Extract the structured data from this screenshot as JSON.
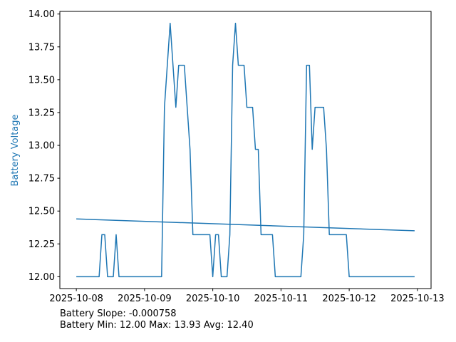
{
  "chart_data": {
    "type": "line",
    "title": "",
    "xlabel": "",
    "ylabel": "Battery Voltage",
    "ylabel_color": "#1f77b4",
    "line_color": "#1f77b4",
    "ylim": [
      11.91,
      14.02
    ],
    "xlim": [
      "2025-10-07T18:12",
      "2025-10-13T04:48"
    ],
    "yticks": [
      "12.00",
      "12.25",
      "12.50",
      "12.75",
      "13.00",
      "13.25",
      "13.50",
      "13.75",
      "14.00"
    ],
    "xticks": [
      "2025-10-08",
      "2025-10-09",
      "2025-10-10",
      "2025-10-11",
      "2025-10-12",
      "2025-10-13"
    ],
    "grid": false,
    "series": [
      {
        "points": [
          [
            "2025-10-08T00:00",
            12.0
          ],
          [
            "2025-10-08T08:00",
            12.0
          ],
          [
            "2025-10-08T09:00",
            12.32
          ],
          [
            "2025-10-08T10:00",
            12.32
          ],
          [
            "2025-10-08T11:00",
            12.0
          ],
          [
            "2025-10-08T13:00",
            12.0
          ],
          [
            "2025-10-08T14:00",
            12.32
          ],
          [
            "2025-10-08T15:00",
            12.0
          ],
          [
            "2025-10-09T06:00",
            12.0
          ],
          [
            "2025-10-09T07:00",
            13.29
          ],
          [
            "2025-10-09T09:00",
            13.93
          ],
          [
            "2025-10-09T11:00",
            13.29
          ],
          [
            "2025-10-09T12:00",
            13.61
          ],
          [
            "2025-10-09T14:00",
            13.61
          ],
          [
            "2025-10-09T16:00",
            12.97
          ],
          [
            "2025-10-09T17:00",
            12.32
          ],
          [
            "2025-10-09T23:00",
            12.32
          ],
          [
            "2025-10-10T00:00",
            12.0
          ],
          [
            "2025-10-10T01:00",
            12.32
          ],
          [
            "2025-10-10T02:00",
            12.32
          ],
          [
            "2025-10-10T03:00",
            12.0
          ],
          [
            "2025-10-10T05:00",
            12.0
          ],
          [
            "2025-10-10T06:00",
            12.32
          ],
          [
            "2025-10-10T07:00",
            13.61
          ],
          [
            "2025-10-10T08:00",
            13.93
          ],
          [
            "2025-10-10T09:00",
            13.61
          ],
          [
            "2025-10-10T11:00",
            13.61
          ],
          [
            "2025-10-10T12:00",
            13.29
          ],
          [
            "2025-10-10T14:00",
            13.29
          ],
          [
            "2025-10-10T15:00",
            12.97
          ],
          [
            "2025-10-10T16:00",
            12.97
          ],
          [
            "2025-10-10T17:00",
            12.32
          ],
          [
            "2025-10-10T21:00",
            12.32
          ],
          [
            "2025-10-10T22:00",
            12.0
          ],
          [
            "2025-10-11T07:00",
            12.0
          ],
          [
            "2025-10-11T08:00",
            12.32
          ],
          [
            "2025-10-11T09:00",
            13.61
          ],
          [
            "2025-10-11T10:00",
            13.61
          ],
          [
            "2025-10-11T11:00",
            12.97
          ],
          [
            "2025-10-11T12:00",
            13.29
          ],
          [
            "2025-10-11T15:00",
            13.29
          ],
          [
            "2025-10-11T16:00",
            12.97
          ],
          [
            "2025-10-11T17:00",
            12.32
          ],
          [
            "2025-10-11T23:00",
            12.32
          ],
          [
            "2025-10-12T00:00",
            12.0
          ],
          [
            "2025-10-12T23:00",
            12.0
          ]
        ]
      },
      {
        "points": [
          [
            "2025-10-08T00:00",
            12.44
          ],
          [
            "2025-10-12T23:00",
            12.35
          ]
        ]
      }
    ]
  },
  "footer": {
    "slope": "Battery Slope: -0.000758",
    "stats": "Battery Min: 12.00 Max: 13.93 Avg: 12.40"
  }
}
